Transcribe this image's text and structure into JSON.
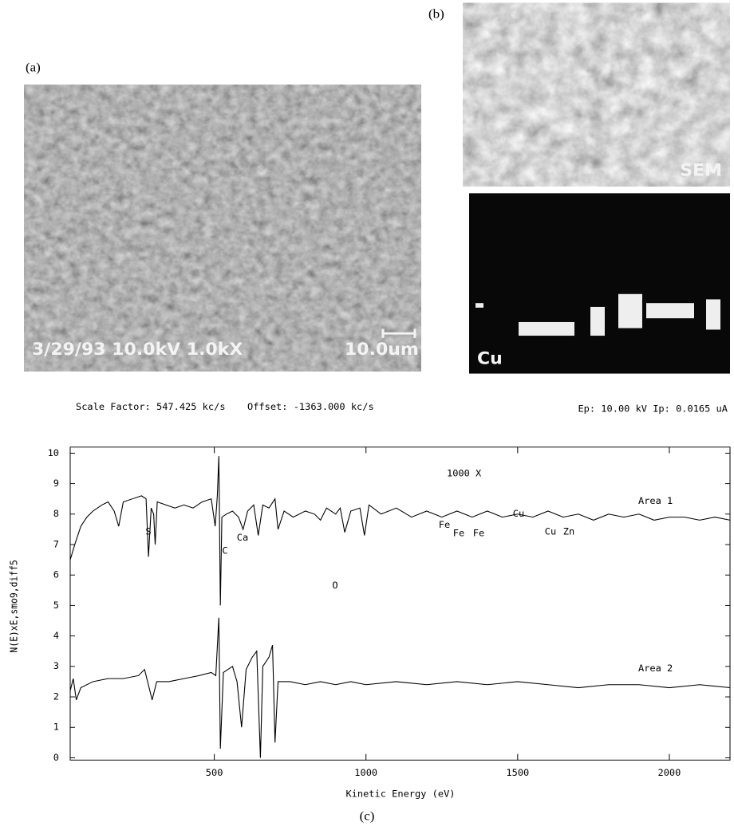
{
  "panels": {
    "a": {
      "label": "(a)",
      "caption": "3/29/93 10.0kV 1.0kX",
      "scale_bar": "10.0um"
    },
    "b": {
      "label": "(b)",
      "sem": "SEM",
      "map": "Cu"
    },
    "c": {
      "label": "(c)"
    }
  },
  "chart_data": {
    "type": "line",
    "scale_factor": "Scale Factor: 547.425 kc/s",
    "offset": "Offset: -1363.000 kc/s",
    "beam": "Ep: 10.00 kV Ip: 0.0165 uA",
    "magnification": "1000 X",
    "xlabel": "Kinetic Energy (eV)",
    "ylabel": "N(E)xE,smo9,diff5",
    "xlim": [
      25,
      2200
    ],
    "ylim": [
      0,
      10
    ],
    "xticks": [
      500,
      1000,
      1500,
      2000
    ],
    "yticks": [
      0,
      1,
      2,
      3,
      4,
      5,
      6,
      7,
      8,
      9,
      10
    ],
    "annotations": [
      "S",
      "C",
      "Ca",
      "Fe",
      "Fe",
      "Fe",
      "Cu",
      "Cu",
      "Zn",
      "O"
    ],
    "series": [
      {
        "name": "Area 1",
        "color": "#000000",
        "x": [
          25,
          40,
          60,
          80,
          100,
          130,
          150,
          170,
          185,
          200,
          230,
          260,
          275,
          283,
          292,
          300,
          305,
          312,
          340,
          370,
          400,
          430,
          460,
          490,
          503,
          510,
          515,
          520,
          525,
          540,
          560,
          580,
          595,
          610,
          630,
          645,
          660,
          680,
          700,
          710,
          730,
          760,
          800,
          830,
          850,
          870,
          900,
          915,
          930,
          950,
          980,
          995,
          1010,
          1050,
          1100,
          1150,
          1200,
          1250,
          1300,
          1350,
          1400,
          1450,
          1500,
          1550,
          1600,
          1650,
          1700,
          1750,
          1800,
          1850,
          1900,
          1950,
          2000,
          2050,
          2100,
          2150,
          2200
        ],
        "values": [
          6.5,
          7.0,
          7.6,
          7.9,
          8.1,
          8.3,
          8.4,
          8.1,
          7.6,
          8.4,
          8.5,
          8.6,
          8.5,
          6.6,
          8.2,
          8.0,
          7.0,
          8.4,
          8.3,
          8.2,
          8.3,
          8.2,
          8.4,
          8.5,
          7.6,
          8.6,
          9.9,
          5.0,
          7.9,
          8.0,
          8.1,
          7.9,
          7.5,
          8.1,
          8.3,
          7.3,
          8.3,
          8.2,
          8.5,
          7.5,
          8.1,
          7.9,
          8.1,
          8.0,
          7.8,
          8.2,
          8.0,
          8.2,
          7.4,
          8.1,
          8.2,
          7.3,
          8.3,
          8.0,
          8.2,
          7.9,
          8.1,
          7.9,
          8.1,
          7.9,
          8.1,
          7.9,
          8.0,
          7.9,
          8.1,
          7.9,
          8.0,
          7.8,
          8.0,
          7.9,
          8.0,
          7.8,
          7.9,
          7.9,
          7.8,
          7.9,
          7.8
        ]
      },
      {
        "name": "Area 2",
        "color": "#000000",
        "x": [
          25,
          35,
          45,
          60,
          100,
          150,
          200,
          250,
          270,
          285,
          295,
          310,
          350,
          400,
          450,
          490,
          505,
          515,
          520,
          530,
          560,
          575,
          590,
          605,
          625,
          640,
          652,
          660,
          680,
          692,
          700,
          710,
          750,
          800,
          850,
          900,
          950,
          1000,
          1100,
          1200,
          1300,
          1400,
          1500,
          1600,
          1700,
          1800,
          1900,
          2000,
          2100,
          2200
        ],
        "values": [
          2.2,
          2.6,
          1.9,
          2.3,
          2.5,
          2.6,
          2.6,
          2.7,
          2.9,
          2.3,
          1.9,
          2.5,
          2.5,
          2.6,
          2.7,
          2.8,
          2.7,
          4.6,
          0.3,
          2.8,
          3.0,
          2.5,
          1.0,
          2.9,
          3.3,
          3.5,
          0.0,
          3.0,
          3.3,
          3.7,
          0.5,
          2.5,
          2.5,
          2.4,
          2.5,
          2.4,
          2.5,
          2.4,
          2.5,
          2.4,
          2.5,
          2.4,
          2.5,
          2.4,
          2.3,
          2.4,
          2.4,
          2.3,
          2.4,
          2.3
        ]
      }
    ]
  }
}
